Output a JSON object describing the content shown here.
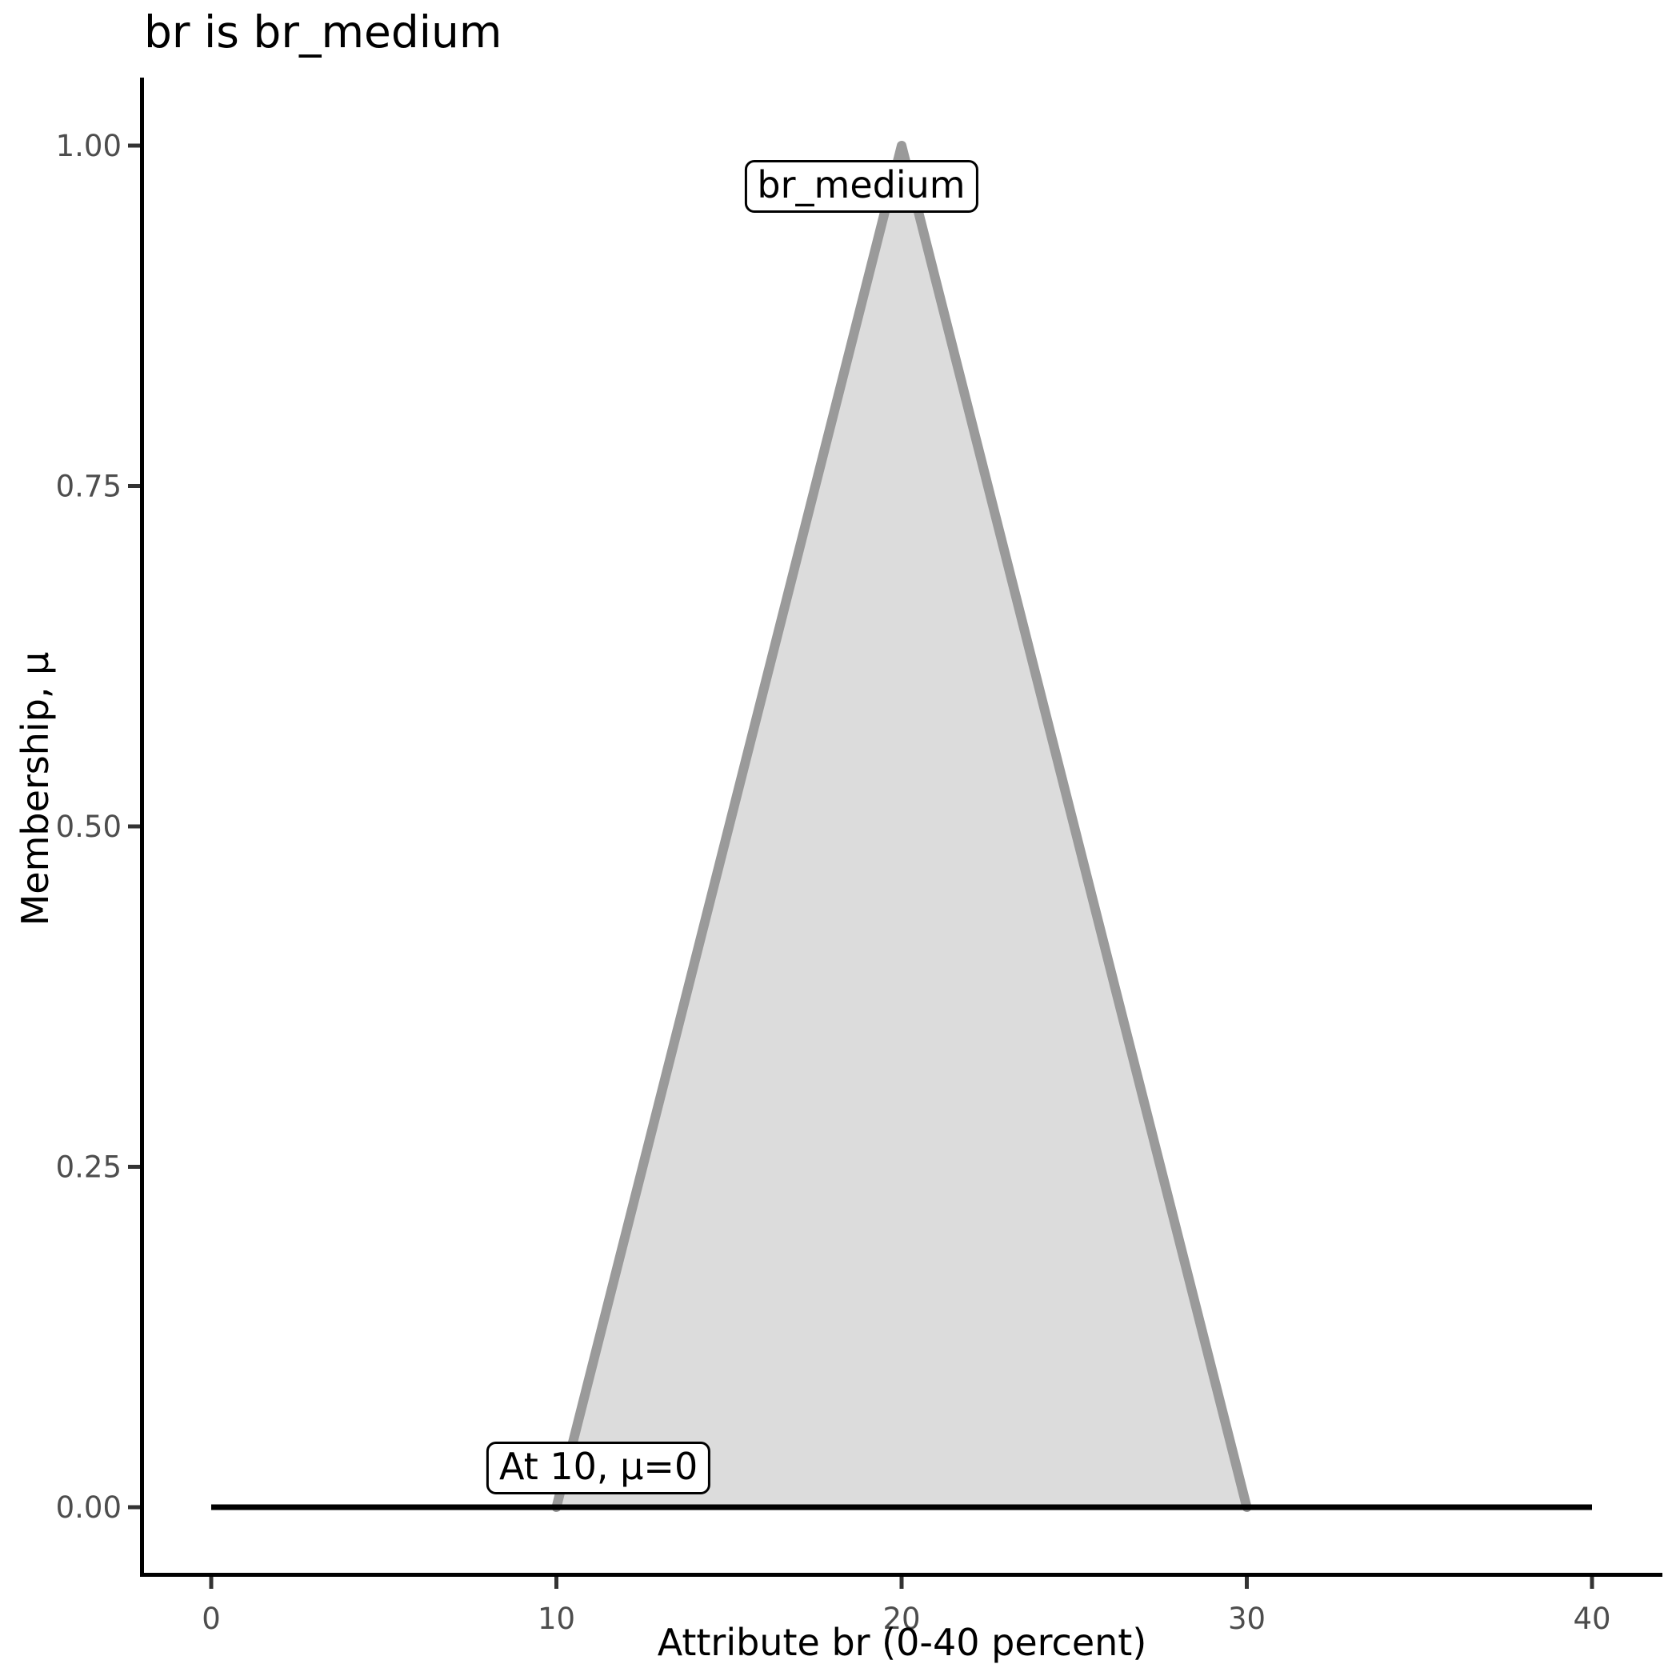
{
  "chart_data": {
    "type": "area",
    "title": "br is br_medium",
    "xlabel": "Attribute br (0-40 percent)",
    "ylabel": "Membership, μ",
    "xlim": [
      0,
      40
    ],
    "ylim": [
      0,
      1
    ],
    "grid": false,
    "legend": "none",
    "xticks": {
      "values": [
        0,
        10,
        20,
        30,
        40
      ],
      "labels": [
        "0",
        "10",
        "20",
        "30",
        "40"
      ]
    },
    "yticks": {
      "values": [
        0,
        0.25,
        0.5,
        0.75,
        1
      ],
      "labels": [
        "0.00",
        "0.25",
        "0.50",
        "0.75",
        "1.00"
      ]
    },
    "series": [
      {
        "name": "br_medium-triangle",
        "kind": "area",
        "x": [
          10,
          20,
          30
        ],
        "y": [
          0,
          1,
          0
        ],
        "fill": "#dcdcdc",
        "stroke": "#9a9a9a",
        "stroke_width": 12
      },
      {
        "name": "zero-membership-line",
        "kind": "line",
        "x": [
          0,
          40
        ],
        "y": [
          0,
          0
        ],
        "stroke": "#000000",
        "stroke_width": 7
      }
    ],
    "annotations": [
      {
        "text": "br_medium",
        "x": 18.83,
        "y": 0.97
      },
      {
        "text": "At 10, μ=0",
        "x": 11.22,
        "y": 0.029
      }
    ],
    "colors": {
      "axis_line": "#000000",
      "tick_mark": "#333333",
      "tick_label": "#4d4d4d",
      "title_text": "#000000",
      "label_box_bg": "#ffffff",
      "label_box_border": "#000000"
    }
  }
}
